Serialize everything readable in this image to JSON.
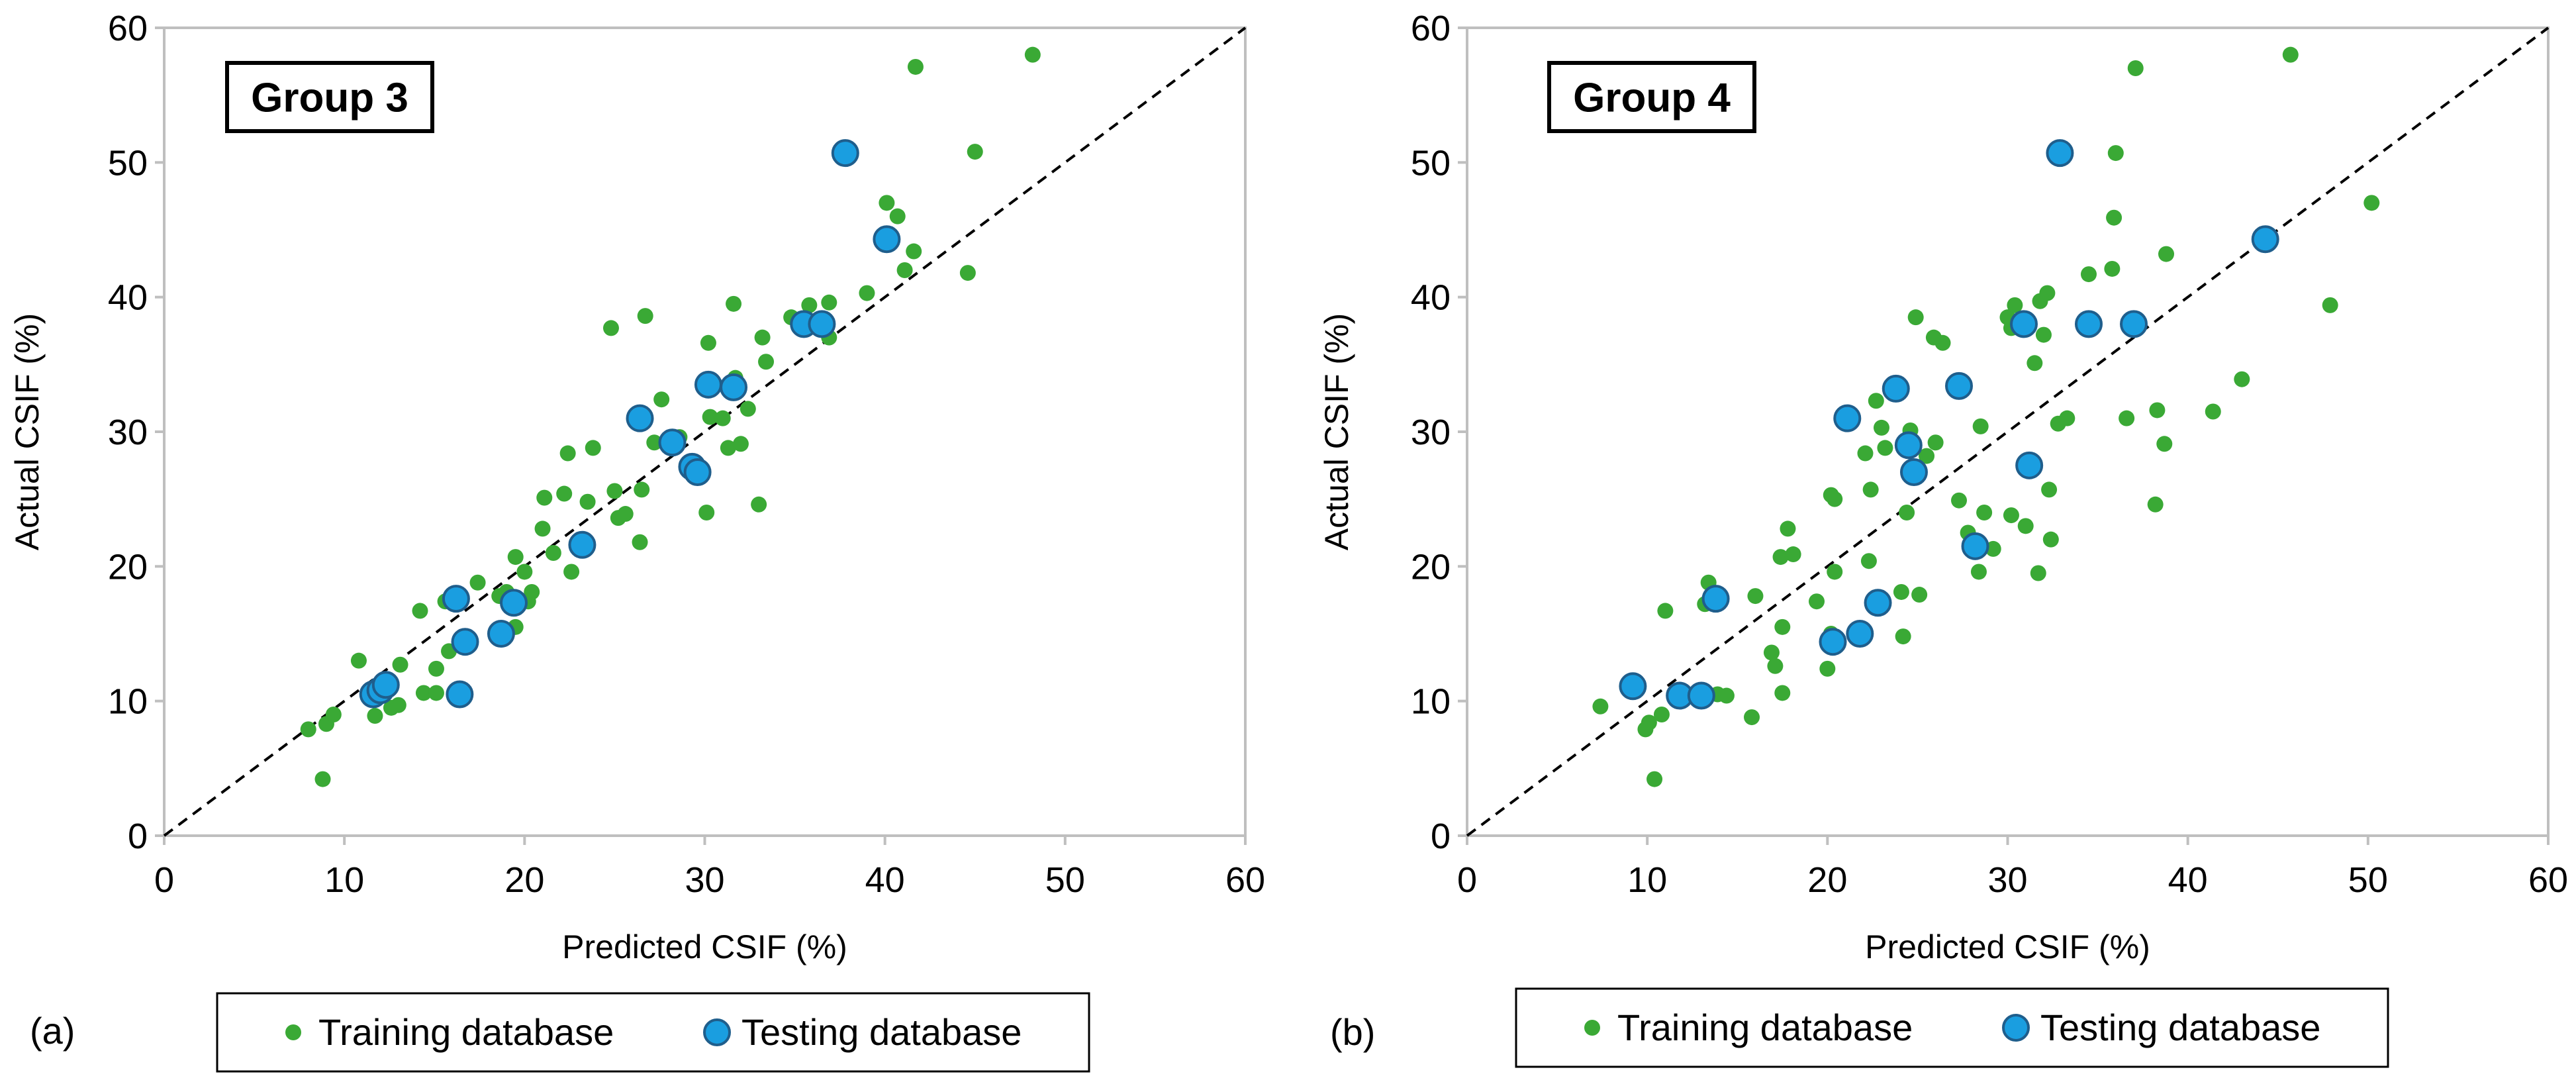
{
  "colors": {
    "training": "#3aa935",
    "testing": "#1a9ee0",
    "testing_edge": "#1f5e8c",
    "frame": "#bfbfbf"
  },
  "chart_data": [
    {
      "type": "scatter",
      "panel_label": "(a)",
      "title": "Group 3",
      "xlabel": "Predicted CSIF (%)",
      "ylabel": "Actual CSIF (%)",
      "xlim": [
        0,
        60
      ],
      "ylim": [
        0,
        60
      ],
      "xticks": [
        0,
        10,
        20,
        30,
        40,
        50,
        60
      ],
      "yticks": [
        0,
        10,
        20,
        30,
        40,
        50,
        60
      ],
      "grid": false,
      "reference_line": "y = x (dashed)",
      "legend": {
        "position": "bottom",
        "items": [
          "Training database",
          "Testing database"
        ]
      },
      "series": [
        {
          "name": "Training database",
          "points": [
            [
              8.0,
              7.9
            ],
            [
              8.8,
              4.2
            ],
            [
              9.0,
              8.3
            ],
            [
              9.4,
              9.0
            ],
            [
              10.8,
              13.0
            ],
            [
              11.4,
              10.5
            ],
            [
              11.7,
              8.9
            ],
            [
              12.6,
              9.5
            ],
            [
              13.0,
              9.7
            ],
            [
              13.1,
              12.7
            ],
            [
              14.2,
              16.7
            ],
            [
              14.4,
              10.6
            ],
            [
              15.1,
              10.6
            ],
            [
              15.1,
              12.4
            ],
            [
              15.6,
              17.4
            ],
            [
              15.8,
              13.7
            ],
            [
              17.4,
              18.8
            ],
            [
              18.6,
              17.8
            ],
            [
              19.0,
              18.1
            ],
            [
              19.5,
              20.7
            ],
            [
              19.5,
              15.5
            ],
            [
              20.0,
              19.6
            ],
            [
              20.2,
              17.4
            ],
            [
              20.4,
              18.1
            ],
            [
              21.0,
              22.8
            ],
            [
              21.1,
              25.1
            ],
            [
              21.6,
              21.0
            ],
            [
              22.2,
              25.4
            ],
            [
              22.4,
              28.4
            ],
            [
              22.6,
              19.6
            ],
            [
              23.0,
              21.9
            ],
            [
              23.5,
              24.8
            ],
            [
              23.8,
              28.8
            ],
            [
              24.8,
              37.7
            ],
            [
              25.0,
              25.6
            ],
            [
              25.2,
              23.6
            ],
            [
              25.6,
              23.9
            ],
            [
              26.4,
              21.8
            ],
            [
              26.5,
              25.7
            ],
            [
              26.7,
              38.6
            ],
            [
              27.2,
              29.2
            ],
            [
              27.6,
              32.4
            ],
            [
              28.6,
              29.6
            ],
            [
              30.1,
              24.0
            ],
            [
              30.2,
              36.6
            ],
            [
              30.3,
              31.1
            ],
            [
              31.0,
              31.0
            ],
            [
              31.3,
              28.8
            ],
            [
              31.6,
              39.5
            ],
            [
              31.7,
              34.0
            ],
            [
              32.0,
              29.1
            ],
            [
              32.4,
              31.7
            ],
            [
              33.0,
              24.6
            ],
            [
              33.2,
              37.0
            ],
            [
              33.4,
              35.2
            ],
            [
              34.8,
              38.5
            ],
            [
              35.8,
              39.4
            ],
            [
              36.9,
              39.6
            ],
            [
              36.9,
              37.0
            ],
            [
              39.0,
              40.3
            ],
            [
              40.1,
              47.0
            ],
            [
              40.7,
              46.0
            ],
            [
              41.1,
              42.0
            ],
            [
              41.6,
              43.4
            ],
            [
              41.7,
              57.1
            ],
            [
              44.6,
              41.8
            ],
            [
              45.0,
              50.8
            ],
            [
              48.2,
              58.0
            ]
          ]
        },
        {
          "name": "Testing database",
          "points": [
            [
              11.6,
              10.5
            ],
            [
              12.0,
              10.8
            ],
            [
              12.3,
              11.2
            ],
            [
              16.2,
              17.6
            ],
            [
              16.4,
              10.5
            ],
            [
              16.7,
              14.4
            ],
            [
              18.7,
              15.0
            ],
            [
              19.4,
              17.3
            ],
            [
              23.2,
              21.6
            ],
            [
              26.4,
              31.0
            ],
            [
              28.2,
              29.2
            ],
            [
              29.3,
              27.4
            ],
            [
              29.6,
              27.0
            ],
            [
              30.2,
              33.5
            ],
            [
              31.6,
              33.3
            ],
            [
              35.5,
              38.0
            ],
            [
              36.5,
              38.0
            ],
            [
              37.8,
              50.7
            ],
            [
              40.1,
              44.3
            ]
          ]
        }
      ]
    },
    {
      "type": "scatter",
      "panel_label": "(b)",
      "title": "Group 4",
      "xlabel": "Predicted CSIF (%)",
      "ylabel": "Actual CSIF (%)",
      "xlim": [
        0,
        60
      ],
      "ylim": [
        0,
        60
      ],
      "xticks": [
        0,
        10,
        20,
        30,
        40,
        50,
        60
      ],
      "yticks": [
        0,
        10,
        20,
        30,
        40,
        50,
        60
      ],
      "grid": false,
      "reference_line": "y = x (dashed)",
      "legend": {
        "position": "bottom",
        "items": [
          "Training database",
          "Testing database"
        ]
      },
      "series": [
        {
          "name": "Training database",
          "points": [
            [
              7.4,
              9.6
            ],
            [
              9.9,
              7.9
            ],
            [
              10.1,
              8.4
            ],
            [
              10.4,
              4.2
            ],
            [
              10.8,
              9.0
            ],
            [
              11.0,
              16.7
            ],
            [
              13.2,
              17.2
            ],
            [
              13.4,
              18.8
            ],
            [
              13.9,
              10.5
            ],
            [
              14.4,
              10.4
            ],
            [
              15.8,
              8.8
            ],
            [
              16.0,
              17.8
            ],
            [
              16.9,
              13.6
            ],
            [
              17.1,
              12.6
            ],
            [
              17.4,
              20.7
            ],
            [
              17.5,
              10.6
            ],
            [
              17.5,
              15.5
            ],
            [
              17.8,
              22.8
            ],
            [
              18.1,
              20.9
            ],
            [
              19.4,
              17.4
            ],
            [
              20.0,
              12.4
            ],
            [
              20.2,
              25.3
            ],
            [
              20.2,
              15.0
            ],
            [
              20.4,
              19.6
            ],
            [
              20.4,
              25.0
            ],
            [
              22.1,
              28.4
            ],
            [
              22.3,
              20.4
            ],
            [
              22.4,
              25.7
            ],
            [
              22.7,
              32.3
            ],
            [
              23.0,
              30.3
            ],
            [
              23.2,
              28.8
            ],
            [
              24.1,
              18.1
            ],
            [
              24.2,
              14.8
            ],
            [
              24.4,
              24.0
            ],
            [
              24.6,
              30.1
            ],
            [
              24.9,
              38.5
            ],
            [
              25.1,
              17.9
            ],
            [
              25.5,
              28.2
            ],
            [
              25.9,
              37.0
            ],
            [
              26.0,
              29.2
            ],
            [
              26.4,
              36.6
            ],
            [
              27.3,
              24.9
            ],
            [
              27.8,
              22.5
            ],
            [
              28.1,
              21.8
            ],
            [
              28.4,
              19.6
            ],
            [
              28.5,
              30.4
            ],
            [
              28.7,
              24.0
            ],
            [
              29.2,
              21.3
            ],
            [
              30.0,
              38.5
            ],
            [
              30.2,
              37.7
            ],
            [
              30.2,
              23.8
            ],
            [
              30.4,
              39.4
            ],
            [
              31.0,
              23.0
            ],
            [
              31.5,
              35.1
            ],
            [
              31.7,
              19.5
            ],
            [
              31.8,
              39.7
            ],
            [
              32.0,
              37.2
            ],
            [
              32.2,
              40.3
            ],
            [
              32.3,
              25.7
            ],
            [
              32.4,
              22.0
            ],
            [
              32.8,
              30.6
            ],
            [
              33.3,
              31.0
            ],
            [
              34.5,
              41.7
            ],
            [
              35.8,
              42.1
            ],
            [
              35.9,
              45.9
            ],
            [
              36.0,
              50.7
            ],
            [
              36.6,
              31.0
            ],
            [
              37.1,
              57.0
            ],
            [
              38.2,
              24.6
            ],
            [
              38.3,
              31.6
            ],
            [
              38.7,
              29.1
            ],
            [
              38.8,
              43.2
            ],
            [
              41.4,
              31.5
            ],
            [
              43.0,
              33.9
            ],
            [
              45.7,
              58.0
            ],
            [
              47.9,
              39.4
            ],
            [
              50.2,
              47.0
            ]
          ]
        },
        {
          "name": "Testing database",
          "points": [
            [
              9.2,
              11.1
            ],
            [
              11.8,
              10.4
            ],
            [
              13.0,
              10.4
            ],
            [
              13.8,
              17.6
            ],
            [
              20.3,
              14.4
            ],
            [
              21.1,
              31.0
            ],
            [
              21.8,
              15.0
            ],
            [
              22.8,
              17.3
            ],
            [
              23.8,
              33.2
            ],
            [
              24.5,
              29.0
            ],
            [
              24.8,
              27.0
            ],
            [
              27.3,
              33.4
            ],
            [
              28.2,
              21.5
            ],
            [
              30.9,
              38.0
            ],
            [
              31.2,
              27.5
            ],
            [
              32.9,
              50.7
            ],
            [
              34.5,
              38.0
            ],
            [
              37.0,
              38.0
            ],
            [
              44.3,
              44.3
            ]
          ]
        }
      ]
    }
  ]
}
